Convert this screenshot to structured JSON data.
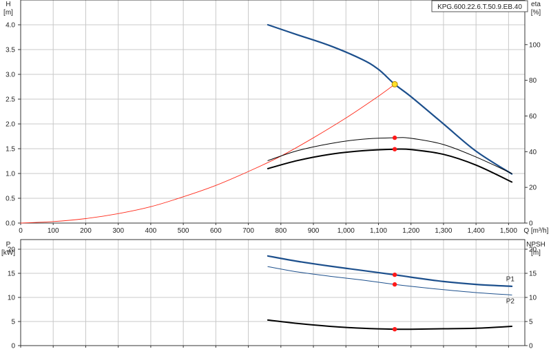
{
  "model_label": "KPG.600.22.6.T.50.9.EB.40",
  "colors": {
    "blue": "#1c4f8c",
    "black": "#000000",
    "red": "#ff2a1a",
    "marker": "#ff1a1a",
    "duty_point": "#ffe02a",
    "grid": "#c8c8c8"
  },
  "chart_data": [
    {
      "type": "line",
      "x_axis": {
        "label": "Q [m³/h]",
        "range": [
          0,
          1550
        ],
        "ticks": [
          0,
          100,
          200,
          300,
          400,
          500,
          600,
          700,
          800,
          900,
          1000,
          1100,
          1200,
          1300,
          1400,
          1500
        ],
        "tick_labels": [
          "0",
          "100",
          "200",
          "300",
          "400",
          "500",
          "600",
          "700",
          "800",
          "900",
          "1,000",
          "1,100",
          "1,200",
          "1,300",
          "1,400",
          "1,500"
        ]
      },
      "y_axis_left": {
        "label_line1": "H",
        "label_line2": "[m]",
        "range": [
          0,
          4.5
        ],
        "ticks": [
          0,
          0.5,
          1.0,
          1.5,
          2.0,
          2.5,
          3.0,
          3.5,
          4.0
        ],
        "tick_labels": [
          "0.0",
          "0.5",
          "1.0",
          "1.5",
          "2.0",
          "2.5",
          "3.0",
          "3.5",
          "4.0"
        ]
      },
      "y_axis_right": {
        "label_line1": "eta",
        "label_line2": "[%]",
        "range": [
          0,
          125
        ],
        "ticks": [
          0,
          20,
          40,
          60,
          80,
          100
        ],
        "tick_labels": [
          "0",
          "20",
          "40",
          "60",
          "80",
          "100"
        ]
      },
      "series": [
        {
          "id": "head",
          "axis": "left",
          "color": "#1c4f8c",
          "width": 2.2,
          "points": [
            [
              760,
              4.0
            ],
            [
              850,
              3.8
            ],
            [
              950,
              3.58
            ],
            [
              1050,
              3.3
            ],
            [
              1100,
              3.1
            ],
            [
              1150,
              2.8
            ],
            [
              1200,
              2.55
            ],
            [
              1300,
              2.0
            ],
            [
              1400,
              1.45
            ],
            [
              1510,
              0.99
            ]
          ]
        },
        {
          "id": "system",
          "axis": "left",
          "color": "#ff2a1a",
          "width": 0.9,
          "points": [
            [
              0,
              0
            ],
            [
              100,
              0.03
            ],
            [
              200,
              0.09
            ],
            [
              300,
              0.19
            ],
            [
              400,
              0.33
            ],
            [
              500,
              0.53
            ],
            [
              600,
              0.76
            ],
            [
              700,
              1.04
            ],
            [
              800,
              1.35
            ],
            [
              900,
              1.72
            ],
            [
              1000,
              2.12
            ],
            [
              1100,
              2.56
            ],
            [
              1150,
              2.8
            ]
          ]
        },
        {
          "id": "eta_upper",
          "axis": "right",
          "color": "#000000",
          "width": 1.0,
          "points": [
            [
              760,
              35
            ],
            [
              850,
              40.5
            ],
            [
              950,
              44.5
            ],
            [
              1050,
              47
            ],
            [
              1150,
              47.8
            ],
            [
              1200,
              47.5
            ],
            [
              1300,
              44
            ],
            [
              1400,
              37
            ],
            [
              1510,
              27.8
            ]
          ]
        },
        {
          "id": "eta_lower",
          "axis": "right",
          "color": "#000000",
          "width": 2.0,
          "points": [
            [
              760,
              30.5
            ],
            [
              850,
              35
            ],
            [
              950,
              38.5
            ],
            [
              1050,
              40.5
            ],
            [
              1150,
              41.4
            ],
            [
              1200,
              41.2
            ],
            [
              1300,
              38.5
            ],
            [
              1400,
              32.5
            ],
            [
              1510,
              23
            ]
          ]
        }
      ],
      "markers": [
        {
          "axis": "left",
          "x": 1150,
          "y": 2.8,
          "color": "#ffe02a",
          "stroke": "#b08800",
          "r": 4
        },
        {
          "axis": "right",
          "x": 1150,
          "y": 47.8,
          "color": "#ff1a1a",
          "r": 3.2
        },
        {
          "axis": "right",
          "x": 1150,
          "y": 41.4,
          "color": "#ff1a1a",
          "r": 3.2
        }
      ]
    },
    {
      "type": "line",
      "x_axis": {
        "range": [
          0,
          1550
        ],
        "ticks": [
          0,
          100,
          200,
          300,
          400,
          500,
          600,
          700,
          800,
          900,
          1000,
          1100,
          1200,
          1300,
          1400,
          1500
        ]
      },
      "y_axis_left": {
        "label_line1": "P",
        "label_line2": "[kW]",
        "range": [
          0,
          22
        ],
        "ticks": [
          0,
          5,
          10,
          15,
          20
        ],
        "tick_labels": [
          "0",
          "5",
          "10",
          "15",
          "20"
        ]
      },
      "y_axis_right": {
        "label_line1": "NPSH",
        "label_line2": "[m]",
        "range": [
          0,
          22
        ],
        "ticks": [
          0,
          5,
          10,
          15,
          20
        ],
        "tick_labels": [
          "0",
          "5",
          "10",
          "15",
          "20"
        ]
      },
      "series": [
        {
          "id": "p1",
          "name": "P1",
          "axis": "left",
          "color": "#1c4f8c",
          "width": 2.2,
          "points": [
            [
              760,
              18.6
            ],
            [
              850,
              17.5
            ],
            [
              950,
              16.5
            ],
            [
              1050,
              15.6
            ],
            [
              1150,
              14.7
            ],
            [
              1200,
              14.2
            ],
            [
              1300,
              13.3
            ],
            [
              1400,
              12.7
            ],
            [
              1510,
              12.3
            ]
          ]
        },
        {
          "id": "p2",
          "name": "P2",
          "axis": "left",
          "color": "#1c4f8c",
          "width": 1.0,
          "points": [
            [
              760,
              16.4
            ],
            [
              850,
              15.3
            ],
            [
              950,
              14.4
            ],
            [
              1050,
              13.6
            ],
            [
              1150,
              12.7
            ],
            [
              1200,
              12.3
            ],
            [
              1300,
              11.6
            ],
            [
              1400,
              11.0
            ],
            [
              1510,
              10.5
            ]
          ]
        },
        {
          "id": "npsh",
          "axis": "right",
          "color": "#000000",
          "width": 2.0,
          "points": [
            [
              760,
              5.3
            ],
            [
              850,
              4.6
            ],
            [
              950,
              4.0
            ],
            [
              1050,
              3.6
            ],
            [
              1150,
              3.4
            ],
            [
              1200,
              3.4
            ],
            [
              1300,
              3.5
            ],
            [
              1400,
              3.6
            ],
            [
              1510,
              4.0
            ]
          ]
        }
      ],
      "series_labels": [
        {
          "series": "p1",
          "text": "P1",
          "x": 1505,
          "y": 13.8
        },
        {
          "series": "p2",
          "text": "P2",
          "x": 1505,
          "y": 9.2
        }
      ],
      "markers": [
        {
          "axis": "left",
          "x": 1150,
          "y": 14.7,
          "color": "#ff1a1a",
          "r": 3.2
        },
        {
          "axis": "left",
          "x": 1150,
          "y": 12.7,
          "color": "#ff1a1a",
          "r": 3.2
        },
        {
          "axis": "right",
          "x": 1150,
          "y": 3.4,
          "color": "#ff1a1a",
          "r": 3.2
        }
      ]
    }
  ]
}
